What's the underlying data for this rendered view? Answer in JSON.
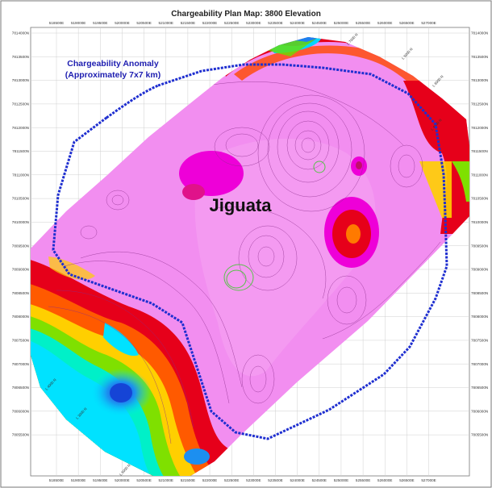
{
  "title": "Chargeability Plan Map: 3800 Elevation",
  "anomaly": {
    "line1": "Chargeability Anomaly",
    "line2": "(Approximately 7x7 km)"
  },
  "place_label": "Jiguata",
  "x_ticks": [
    "518500E",
    "519000E",
    "519500E",
    "520000E",
    "520500E",
    "521000E",
    "521500E",
    "522000E",
    "522500E",
    "523000E",
    "523500E",
    "524000E",
    "524500E",
    "525000E",
    "525500E",
    "526000E",
    "526500E",
    "527000E"
  ],
  "y_ticks": [
    "7814000N",
    "7813500N",
    "7813000N",
    "7812500N",
    "7812000N",
    "7811500N",
    "7811000N",
    "7810500N",
    "7810000N",
    "7809500N",
    "7809000N",
    "7808500N",
    "7808000N",
    "7807500N",
    "7807000N",
    "7806500N",
    "7806000N",
    "7805500N"
  ],
  "line_labels": [
    "L 7000 N",
    "L 5000 N",
    "L 6000 N",
    "L 4000 N",
    "L 3000 N",
    "L 4000 N",
    "L 5000 N"
  ],
  "colors": {
    "anomaly_outline": "#1f2fd0",
    "background_pink": "#f28ef0",
    "high_red": "#e8001a",
    "low_cyan": "#00eaff",
    "low_blue": "#1c55e6",
    "green_contour": "#59c24a"
  }
}
